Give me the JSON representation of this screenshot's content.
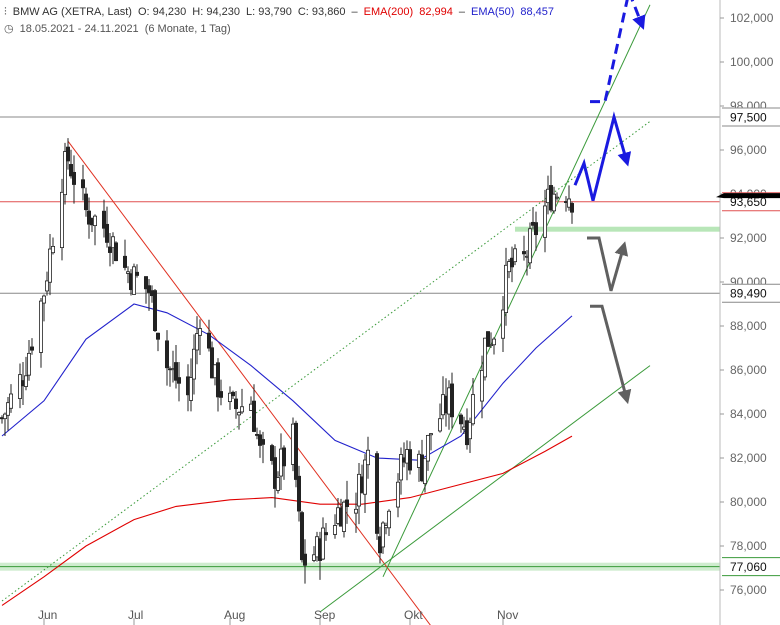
{
  "header": {
    "symbol": "BMW AG (XETRA, Last)",
    "open": "O: 94,230",
    "high": "H: 94,230",
    "low": "L: 93,790",
    "close": "C: 93,860",
    "ema200_label": "EMA(200)",
    "ema200_value": "82,994",
    "ema50_label": "EMA(50)",
    "ema50_value": "88,457",
    "date_range": "18.05.2021 - 24.11.2021",
    "period": "(6 Monate, 1 Tag)"
  },
  "colors": {
    "candle": "#222222",
    "ema200": "#e00000",
    "ema50": "#2222cc",
    "trend_red": "#e03020",
    "trend_green": "#3a9a3a",
    "projection_blue": "#1a1ae0",
    "projection_gray": "#606060",
    "support_band": "#b8e6b8"
  },
  "chart_data": {
    "type": "candlestick",
    "title": "BMW AG (XETRA, Last)",
    "ylim": [
      75,
      103.5
    ],
    "y_ticks": [
      "76,000",
      "78,000",
      "80,000",
      "82,000",
      "84,000",
      "86,000",
      "88,000",
      "90,000",
      "92,000",
      "94,000",
      "96,000",
      "98,000",
      "100,000",
      "102,000"
    ],
    "y_tick_values": [
      76,
      78,
      80,
      82,
      84,
      86,
      88,
      90,
      92,
      94,
      96,
      98,
      100,
      102
    ],
    "x_labels": [
      "Jun",
      "Jul",
      "Aug",
      "Sep",
      "Okt",
      "Nov"
    ],
    "x_label_dates": [
      "2021-06-01",
      "2021-07-01",
      "2021-08-02",
      "2021-09-01",
      "2021-10-01",
      "2021-11-01"
    ],
    "date_range": [
      "2021-05-18",
      "2021-11-24"
    ],
    "levels": [
      {
        "label": "97,500",
        "value": 97.5,
        "color": "#888888"
      },
      {
        "label": "93,650",
        "value": 93.65,
        "color": "#e05050"
      },
      {
        "label": "89,490",
        "value": 89.49,
        "color": "#888888"
      },
      {
        "label": "77,060",
        "value": 77.06,
        "color": "#3a9a3a"
      }
    ],
    "current_price": 93.86,
    "closes": [
      {
        "date": "2021-05-18",
        "close": 83.8
      },
      {
        "date": "2021-05-25",
        "close": 85.8
      },
      {
        "date": "2021-06-01",
        "close": 89.6
      },
      {
        "date": "2021-06-07",
        "close": 94.8
      },
      {
        "date": "2021-06-09",
        "close": 95.6
      },
      {
        "date": "2021-06-15",
        "close": 93.2
      },
      {
        "date": "2021-06-22",
        "close": 92.4
      },
      {
        "date": "2021-06-28",
        "close": 90.6
      },
      {
        "date": "2021-07-06",
        "close": 89.6
      },
      {
        "date": "2021-07-12",
        "close": 86.2
      },
      {
        "date": "2021-07-19",
        "close": 84.8
      },
      {
        "date": "2021-07-23",
        "close": 88.6
      },
      {
        "date": "2021-07-28",
        "close": 85.5
      },
      {
        "date": "2021-08-03",
        "close": 84.2
      },
      {
        "date": "2021-08-09",
        "close": 84.6
      },
      {
        "date": "2021-08-12",
        "close": 82.2
      },
      {
        "date": "2021-08-17",
        "close": 81.2
      },
      {
        "date": "2021-08-23",
        "close": 82.8
      },
      {
        "date": "2021-08-26",
        "close": 77.2
      },
      {
        "date": "2021-08-31",
        "close": 77.8
      },
      {
        "date": "2021-09-07",
        "close": 79.6
      },
      {
        "date": "2021-09-13",
        "close": 80.2
      },
      {
        "date": "2021-09-17",
        "close": 82.2
      },
      {
        "date": "2021-09-21",
        "close": 78.4
      },
      {
        "date": "2021-09-24",
        "close": 80.2
      },
      {
        "date": "2021-09-30",
        "close": 82.2
      },
      {
        "date": "2021-10-05",
        "close": 81.6
      },
      {
        "date": "2021-10-08",
        "close": 83.2
      },
      {
        "date": "2021-10-14",
        "close": 84.6
      },
      {
        "date": "2021-10-20",
        "close": 83.4
      },
      {
        "date": "2021-10-26",
        "close": 87.2
      },
      {
        "date": "2021-10-29",
        "close": 87.8
      },
      {
        "date": "2021-11-03",
        "close": 90.6
      },
      {
        "date": "2021-11-08",
        "close": 91.0
      },
      {
        "date": "2021-11-12",
        "close": 92.4
      },
      {
        "date": "2021-11-17",
        "close": 94.0
      },
      {
        "date": "2021-11-22",
        "close": 94.2
      },
      {
        "date": "2021-11-24",
        "close": 93.86
      }
    ],
    "ema50": [
      {
        "date": "2021-05-18",
        "value": 83.0
      },
      {
        "date": "2021-06-01",
        "value": 84.6
      },
      {
        "date": "2021-06-15",
        "value": 87.4
      },
      {
        "date": "2021-07-01",
        "value": 89.0
      },
      {
        "date": "2021-07-12",
        "value": 88.6
      },
      {
        "date": "2021-07-26",
        "value": 87.6
      },
      {
        "date": "2021-08-09",
        "value": 86.2
      },
      {
        "date": "2021-08-23",
        "value": 84.6
      },
      {
        "date": "2021-09-06",
        "value": 82.8
      },
      {
        "date": "2021-09-20",
        "value": 82.0
      },
      {
        "date": "2021-10-04",
        "value": 81.9
      },
      {
        "date": "2021-10-18",
        "value": 83.0
      },
      {
        "date": "2021-11-01",
        "value": 85.4
      },
      {
        "date": "2021-11-12",
        "value": 87.0
      },
      {
        "date": "2021-11-24",
        "value": 88.457
      }
    ],
    "ema200": [
      {
        "date": "2021-05-18",
        "value": 75.3
      },
      {
        "date": "2021-06-01",
        "value": 76.6
      },
      {
        "date": "2021-06-15",
        "value": 78.0
      },
      {
        "date": "2021-07-01",
        "value": 79.2
      },
      {
        "date": "2021-07-15",
        "value": 79.8
      },
      {
        "date": "2021-08-02",
        "value": 80.1
      },
      {
        "date": "2021-08-16",
        "value": 80.2
      },
      {
        "date": "2021-09-01",
        "value": 79.9
      },
      {
        "date": "2021-09-15",
        "value": 79.9
      },
      {
        "date": "2021-10-01",
        "value": 80.2
      },
      {
        "date": "2021-10-15",
        "value": 80.7
      },
      {
        "date": "2021-11-01",
        "value": 81.3
      },
      {
        "date": "2021-11-15",
        "value": 82.3
      },
      {
        "date": "2021-11-24",
        "value": 82.994
      }
    ],
    "trendlines": [
      {
        "name": "red-downtrend",
        "color": "#e03020",
        "from": {
          "date": "2021-06-09",
          "value": 96.4
        },
        "to": {
          "date": "2021-10-10",
          "value": 74.0
        }
      },
      {
        "name": "green-uptrend-steep",
        "color": "#3a9a3a",
        "from": {
          "date": "2021-09-22",
          "value": 76.6
        },
        "to": {
          "date": "2021-12-20",
          "value": 102.6
        }
      },
      {
        "name": "green-uptrend-shallow",
        "color": "#3a9a3a",
        "from": {
          "date": "2021-09-01",
          "value": 75.0
        },
        "to": {
          "date": "2021-12-20",
          "value": 86.2
        }
      },
      {
        "name": "green-dotted-channel",
        "color": "#3a9a3a",
        "dashed": true,
        "from": {
          "date": "2021-05-18",
          "value": 75.5
        },
        "to": {
          "date": "2021-12-20",
          "value": 97.3
        }
      }
    ],
    "support_band": {
      "from_date": "2021-11-05",
      "value": 92.4
    },
    "projections": [
      {
        "name": "blue-solid-path",
        "color": "#1a1ae0",
        "dashed": false,
        "arrow": true,
        "points": [
          {
            "date": "2021-11-25",
            "value": 94.4
          },
          {
            "date": "2021-11-28",
            "value": 95.4
          },
          {
            "date": "2021-12-01",
            "value": 93.7
          },
          {
            "date": "2021-12-08",
            "value": 97.5
          },
          {
            "date": "2021-12-12",
            "value": 95.6
          }
        ]
      },
      {
        "name": "blue-dashed-path",
        "color": "#1a1ae0",
        "dashed": true,
        "arrow": true,
        "points": [
          {
            "date": "2021-11-30",
            "value": 98.2
          },
          {
            "date": "2021-12-05",
            "value": 98.2
          },
          {
            "date": "2021-12-13",
            "value": 103.2
          },
          {
            "date": "2021-12-17",
            "value": 101.8
          }
        ]
      },
      {
        "name": "gray-path-up",
        "color": "#606060",
        "dashed": false,
        "arrow": true,
        "points": [
          {
            "date": "2021-11-29",
            "value": 92.0
          },
          {
            "date": "2021-12-03",
            "value": 92.0
          },
          {
            "date": "2021-12-07",
            "value": 89.6
          },
          {
            "date": "2021-12-11",
            "value": 91.5
          }
        ]
      },
      {
        "name": "gray-path-down",
        "color": "#606060",
        "dashed": false,
        "arrow": true,
        "points": [
          {
            "date": "2021-11-30",
            "value": 88.9
          },
          {
            "date": "2021-12-04",
            "value": 88.9
          },
          {
            "date": "2021-12-12",
            "value": 84.8
          }
        ]
      }
    ]
  }
}
